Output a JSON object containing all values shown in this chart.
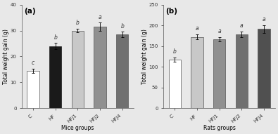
{
  "mice": {
    "categories": [
      "C",
      "HF",
      "HFJ1",
      "HFJ2",
      "HFJ4"
    ],
    "values": [
      14.5,
      24.0,
      30.0,
      31.5,
      28.5
    ],
    "errors": [
      0.8,
      1.2,
      0.8,
      1.5,
      1.0
    ],
    "letters": [
      "c",
      "b",
      "b",
      "a",
      "b"
    ],
    "colors": [
      "#ffffff",
      "#1a1a1a",
      "#c8c8c8",
      "#909090",
      "#707070"
    ],
    "edgecolors": [
      "#555555",
      "#1a1a1a",
      "#555555",
      "#555555",
      "#555555"
    ],
    "ylabel": "Total weight gain (g)",
    "xlabel": "Mice groups",
    "panel_label": "(a)",
    "ylim": [
      0,
      40
    ],
    "yticks": [
      0,
      10,
      20,
      30,
      40
    ]
  },
  "rats": {
    "categories": [
      "C",
      "HF",
      "HFJ1",
      "HFJ2",
      "HFJ4"
    ],
    "values": [
      117.0,
      172.0,
      167.0,
      178.0,
      191.0
    ],
    "errors": [
      5.0,
      6.0,
      5.0,
      7.0,
      10.0
    ],
    "letters": [
      "b",
      "a",
      "a",
      "a",
      "a"
    ],
    "colors": [
      "#ffffff",
      "#c8c8c8",
      "#909090",
      "#707070",
      "#505050"
    ],
    "edgecolors": [
      "#555555",
      "#555555",
      "#555555",
      "#555555",
      "#555555"
    ],
    "ylabel": "Total weight gain (g)",
    "xlabel": "Rats groups",
    "panel_label": "(b)",
    "ylim": [
      0,
      250
    ],
    "yticks": [
      0,
      50,
      100,
      150,
      200,
      250
    ]
  },
  "bar_width": 0.55,
  "fontsize_labels": 5.5,
  "fontsize_ticks": 5.0,
  "fontsize_letters": 5.5,
  "fontsize_panel": 7.5,
  "background_color": "#e8e8e8"
}
